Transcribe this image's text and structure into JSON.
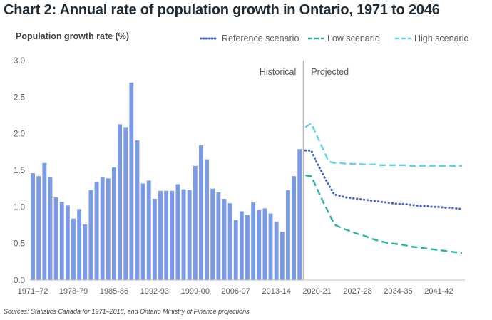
{
  "title": "Chart 2: Annual rate of population growth in Ontario, 1971 to 2046",
  "source_note": "Sources: Statistics Canada for 1971–2018, and Ontario Ministry of Finance projections.",
  "colors": {
    "bars": "#7b9be6",
    "reference": "#4a67c6",
    "low": "#27b3a3",
    "high": "#5fd3ea",
    "divider": "#a6a6a6",
    "axis_text": "#595959"
  },
  "chart_data": {
    "type": "bar",
    "ylabel": "Population growth rate (%)",
    "ylim": [
      0,
      3.0
    ],
    "yticks": [
      "0.0",
      "0.5",
      "1.0",
      "1.5",
      "2.0",
      "2.5",
      "3.0"
    ],
    "grid": false,
    "legend_position": "top-right",
    "region_labels": {
      "historical": "Historical",
      "projected": "Projected"
    },
    "categories": [
      "1971–72",
      "1972–73",
      "1973–74",
      "1974–75",
      "1975–76",
      "1976–77",
      "1977–78",
      "1978-79",
      "1979–80",
      "1980–81",
      "1981–82",
      "1982–83",
      "1983–84",
      "1984–85",
      "1985–86",
      "1986–87",
      "1987–88",
      "1988–89",
      "1989–90",
      "1990–91",
      "1991–92",
      "1992-93",
      "1993–94",
      "1994–95",
      "1995–96",
      "1996–97",
      "1997–98",
      "1998–99",
      "1999–00",
      "2000–01",
      "2001–02",
      "2002–03",
      "2003–04",
      "2004–05",
      "2005–06",
      "2006-07",
      "2007–08",
      "2008–09",
      "2009–10",
      "2010–11",
      "2011–12",
      "2012–13",
      "2013-14",
      "2014–15",
      "2015–16",
      "2016–17",
      "2017–18"
    ],
    "tick_labels": [
      "1971–72",
      "1978-79",
      "1985-86",
      "1992-93",
      "1999-00",
      "2006-07",
      "2013-14",
      "2020-21",
      "2027-28",
      "2034-35",
      "2041-42"
    ],
    "series": [
      {
        "name": "Historical",
        "type": "bar",
        "values": [
          1.46,
          1.42,
          1.6,
          1.41,
          1.13,
          1.07,
          1.02,
          0.84,
          0.97,
          0.76,
          1.23,
          1.34,
          1.41,
          1.39,
          1.54,
          2.13,
          2.09,
          2.7,
          1.91,
          1.32,
          1.36,
          1.11,
          1.22,
          1.22,
          1.22,
          1.31,
          1.24,
          1.23,
          1.56,
          1.84,
          1.65,
          1.25,
          1.2,
          1.11,
          1.05,
          0.82,
          0.94,
          0.89,
          1.06,
          0.96,
          0.98,
          0.91,
          0.8,
          0.66,
          1.23,
          1.42,
          1.79
        ]
      },
      {
        "name": "Reference scenario",
        "type": "line",
        "style": "dotted",
        "x": [
          "2018-19",
          "2019-20",
          "2020-21",
          "2021-22",
          "2022-23",
          "2023-24",
          "2024-25",
          "2025-26",
          "2026-27",
          "2027-28",
          "2028-29",
          "2029-30",
          "2030-31",
          "2031-32",
          "2032-33",
          "2033-34",
          "2034-35",
          "2035-36",
          "2036-37",
          "2037-38",
          "2038-39",
          "2039-40",
          "2040-41",
          "2041-42",
          "2042-43",
          "2043-44",
          "2044-45",
          "2045-46"
        ],
        "values": [
          1.77,
          1.77,
          1.6,
          1.45,
          1.3,
          1.17,
          1.15,
          1.13,
          1.12,
          1.11,
          1.1,
          1.09,
          1.08,
          1.07,
          1.06,
          1.05,
          1.04,
          1.04,
          1.03,
          1.02,
          1.01,
          1.01,
          1.0,
          1.0,
          0.99,
          0.99,
          0.98,
          0.97
        ]
      },
      {
        "name": "Low scenario",
        "type": "line",
        "style": "dashed",
        "x": [
          "2018-19",
          "2019-20",
          "2020-21",
          "2021-22",
          "2022-23",
          "2023-24",
          "2024-25",
          "2025-26",
          "2026-27",
          "2027-28",
          "2028-29",
          "2029-30",
          "2030-31",
          "2031-32",
          "2032-33",
          "2033-34",
          "2034-35",
          "2035-36",
          "2036-37",
          "2037-38",
          "2038-39",
          "2039-40",
          "2040-41",
          "2041-42",
          "2042-43",
          "2043-44",
          "2044-45",
          "2045-46"
        ],
        "values": [
          1.43,
          1.42,
          1.25,
          1.08,
          0.92,
          0.76,
          0.72,
          0.69,
          0.66,
          0.63,
          0.61,
          0.58,
          0.55,
          0.53,
          0.51,
          0.5,
          0.49,
          0.48,
          0.46,
          0.45,
          0.44,
          0.43,
          0.42,
          0.41,
          0.4,
          0.39,
          0.38,
          0.37
        ]
      },
      {
        "name": "High scenario",
        "type": "line",
        "style": "dashed",
        "x": [
          "2018-19",
          "2019-20",
          "2020-21",
          "2021-22",
          "2022-23",
          "2023-24",
          "2024-25",
          "2025-26",
          "2026-27",
          "2027-28",
          "2028-29",
          "2029-30",
          "2030-31",
          "2031-32",
          "2032-33",
          "2033-34",
          "2034-35",
          "2035-36",
          "2036-37",
          "2037-38",
          "2038-39",
          "2039-40",
          "2040-41",
          "2041-42",
          "2042-43",
          "2043-44",
          "2044-45",
          "2045-46"
        ],
        "values": [
          2.09,
          2.14,
          1.97,
          1.8,
          1.62,
          1.6,
          1.6,
          1.59,
          1.59,
          1.59,
          1.58,
          1.58,
          1.58,
          1.57,
          1.57,
          1.57,
          1.57,
          1.57,
          1.56,
          1.56,
          1.56,
          1.56,
          1.56,
          1.56,
          1.56,
          1.56,
          1.56,
          1.56
        ]
      }
    ]
  }
}
